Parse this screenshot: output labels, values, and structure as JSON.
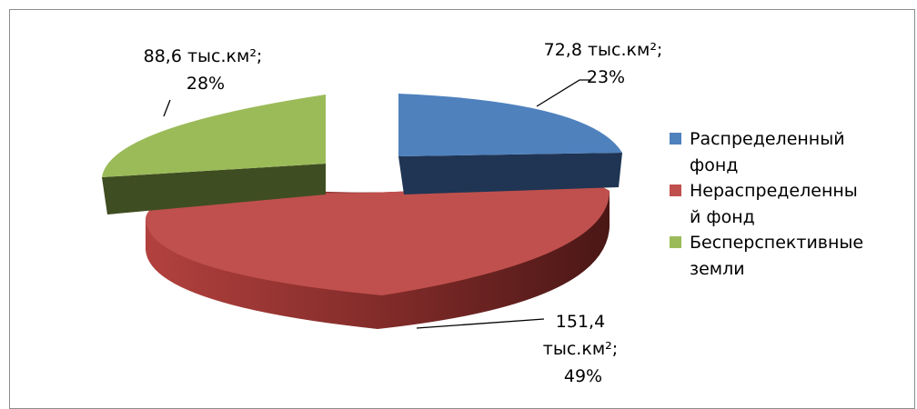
{
  "chart_data": {
    "type": "pie",
    "title": "",
    "legend_position": "right",
    "slices": [
      {
        "name": "Распределенный фонд",
        "legend_lines": [
          "Распределенный",
          "фонд"
        ],
        "value": 72.8,
        "percent": 23,
        "label_lines": [
          "72,8 тыс.км²;",
          "23%"
        ],
        "color": "#4F81BD",
        "side_color": "#1F3553"
      },
      {
        "name": "Нераспределенный фонд",
        "legend_lines": [
          "Нераспределенны",
          "й фонд"
        ],
        "value": 151.4,
        "percent": 49,
        "label_lines": [
          "151,4",
          "тыс.км²;",
          "49%"
        ],
        "color": "#C0504D",
        "side_color": "#6E2321"
      },
      {
        "name": "Бесперспективные земли",
        "legend_lines": [
          "Бесперспективные",
          "земли"
        ],
        "value": 88.6,
        "percent": 28,
        "label_lines": [
          "88,6 тыс.км²;",
          "28%"
        ],
        "color": "#9BBB59",
        "side_color": "#3F4D22"
      }
    ]
  }
}
